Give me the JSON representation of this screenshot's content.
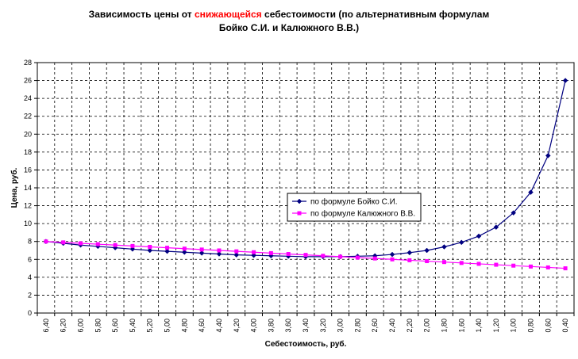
{
  "chart_data": {
    "type": "line",
    "title": {
      "before": "Зависимость цены от ",
      "highlight": "снижающейся",
      "after": " себестоимости (по альтернативным формулам",
      "line2": "Бойко С.И. и Калюжного В.В.)"
    },
    "xlabel": "Себестоимость, руб.",
    "ylabel": "Цена, руб.",
    "x": [
      "6,40",
      "6,20",
      "6,00",
      "5,80",
      "5,60",
      "5,40",
      "5,20",
      "5,00",
      "4,80",
      "4,60",
      "4,40",
      "4,20",
      "4,00",
      "3,80",
      "3,60",
      "3,40",
      "3,20",
      "3,00",
      "2,80",
      "2,60",
      "2,40",
      "2,20",
      "2,00",
      "1,80",
      "1,60",
      "1,40",
      "1,20",
      "1,00",
      "0,80",
      "0,60",
      "0,40"
    ],
    "ylim": [
      0,
      28
    ],
    "yticks": [
      0,
      2,
      4,
      6,
      8,
      10,
      12,
      14,
      16,
      18,
      20,
      22,
      24,
      26,
      28
    ],
    "grid": true,
    "legend_position": "center-right",
    "series": [
      {
        "name": "по формуле Бойко С.И.",
        "color": "#000080",
        "marker": "diamond",
        "values": [
          8.0,
          7.8,
          7.6,
          7.45,
          7.3,
          7.15,
          7.0,
          6.9,
          6.8,
          6.7,
          6.6,
          6.5,
          6.45,
          6.4,
          6.35,
          6.3,
          6.3,
          6.3,
          6.35,
          6.4,
          6.55,
          6.75,
          7.0,
          7.4,
          7.9,
          8.6,
          9.6,
          11.2,
          13.5,
          17.6,
          26.0
        ]
      },
      {
        "name": "по формуле Калюжного В.В.",
        "color": "#ff00ff",
        "marker": "square",
        "values": [
          8.0,
          7.9,
          7.8,
          7.7,
          7.6,
          7.5,
          7.4,
          7.3,
          7.2,
          7.1,
          7.0,
          6.9,
          6.8,
          6.7,
          6.6,
          6.5,
          6.4,
          6.3,
          6.2,
          6.1,
          6.0,
          5.9,
          5.8,
          5.7,
          5.6,
          5.5,
          5.4,
          5.3,
          5.2,
          5.1,
          5.0
        ]
      }
    ]
  }
}
